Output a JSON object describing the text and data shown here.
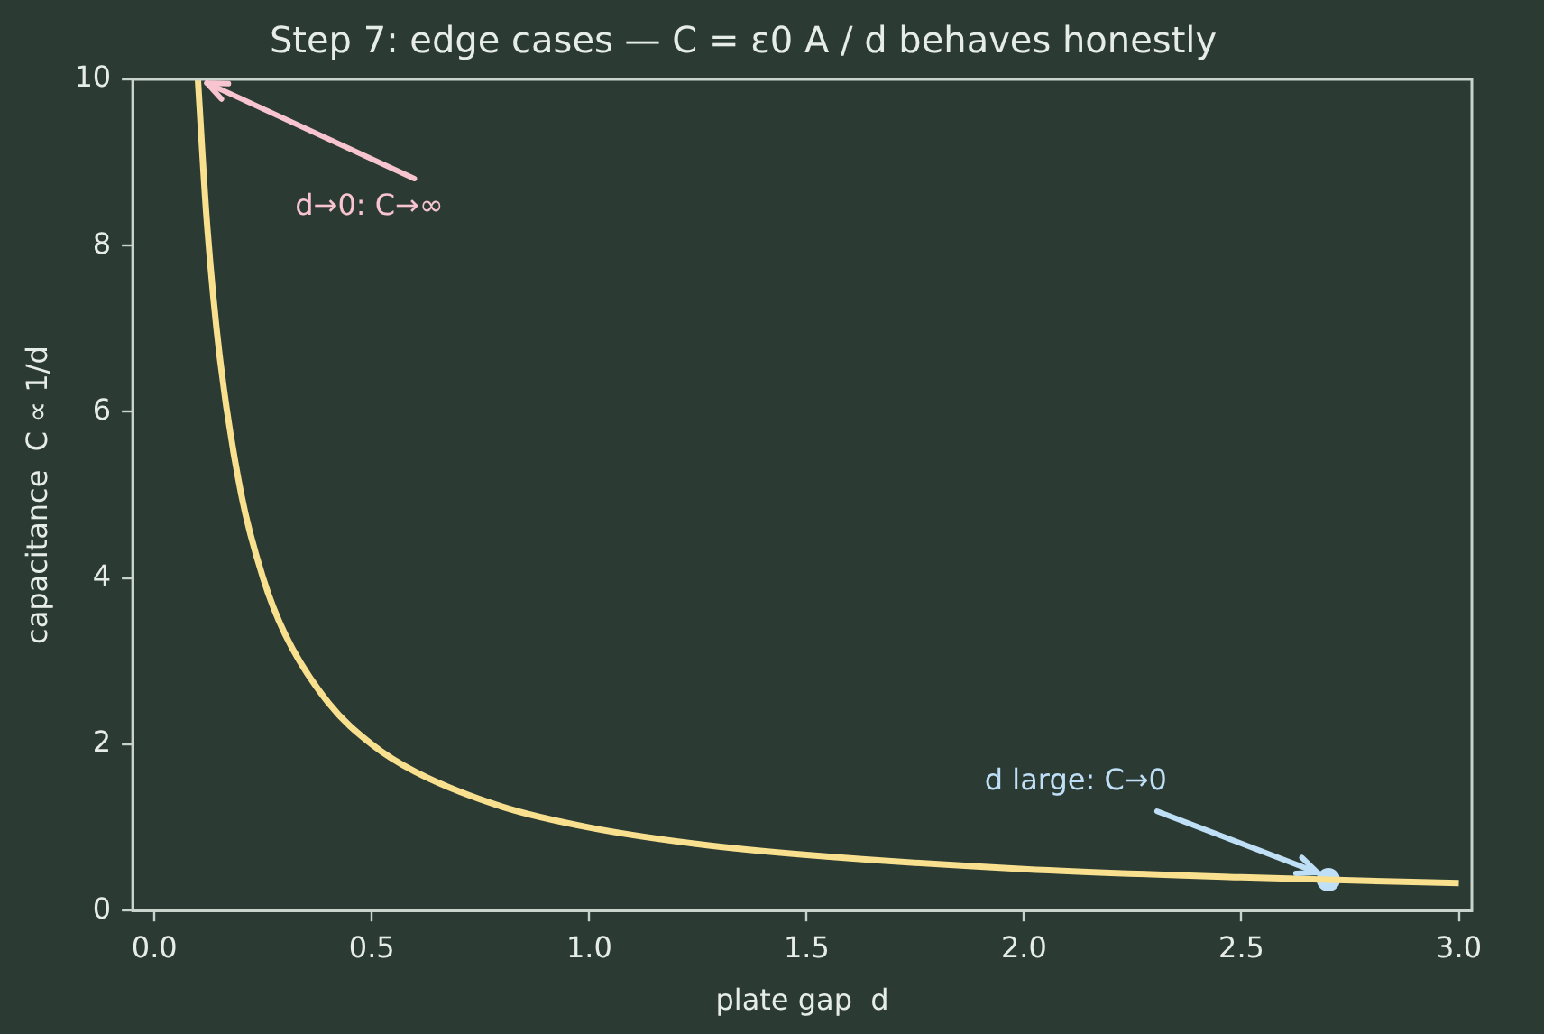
{
  "chart_data": {
    "type": "line",
    "title": "Step 7: edge cases — C = ε0 A / d behaves honestly",
    "xlabel": "plate gap  d",
    "ylabel": "capacitance  C ∝ 1/d",
    "x": [
      0.1,
      0.12,
      0.15,
      0.2,
      0.25,
      0.3,
      0.4,
      0.5,
      0.6,
      0.8,
      1.0,
      1.25,
      1.5,
      2.0,
      2.5,
      3.0
    ],
    "series": [
      {
        "color": "#f8e08e",
        "values": [
          10,
          8.33,
          6.67,
          5,
          4,
          3.33,
          2.5,
          2,
          1.67,
          1.25,
          1,
          0.8,
          0.67,
          0.5,
          0.4,
          0.33
        ]
      },
      {
        "type": "scatter",
        "color": "#bfdff7",
        "x": [
          2.7
        ],
        "values": [
          0.37
        ]
      }
    ],
    "xlim": [
      -0.05,
      3.03
    ],
    "xticks": [
      {
        "value": 0,
        "label": "0.0"
      },
      {
        "value": 0.5,
        "label": "0.5"
      },
      {
        "value": 1,
        "label": "1.0"
      },
      {
        "value": 1.5,
        "label": "1.5"
      },
      {
        "value": 2,
        "label": "2.0"
      },
      {
        "value": 2.5,
        "label": "2.5"
      },
      {
        "value": 3,
        "label": "3.0"
      }
    ],
    "ylim": [
      0,
      10
    ],
    "yticks": [
      0,
      2,
      4,
      6,
      8,
      10
    ],
    "grid": false,
    "legend": false,
    "annotations": [
      {
        "text": "d→0: C→∞",
        "x": 0.1,
        "y": 10
      },
      {
        "text": "d large: C→0",
        "x": 2.7,
        "y": 0.37
      }
    ]
  }
}
